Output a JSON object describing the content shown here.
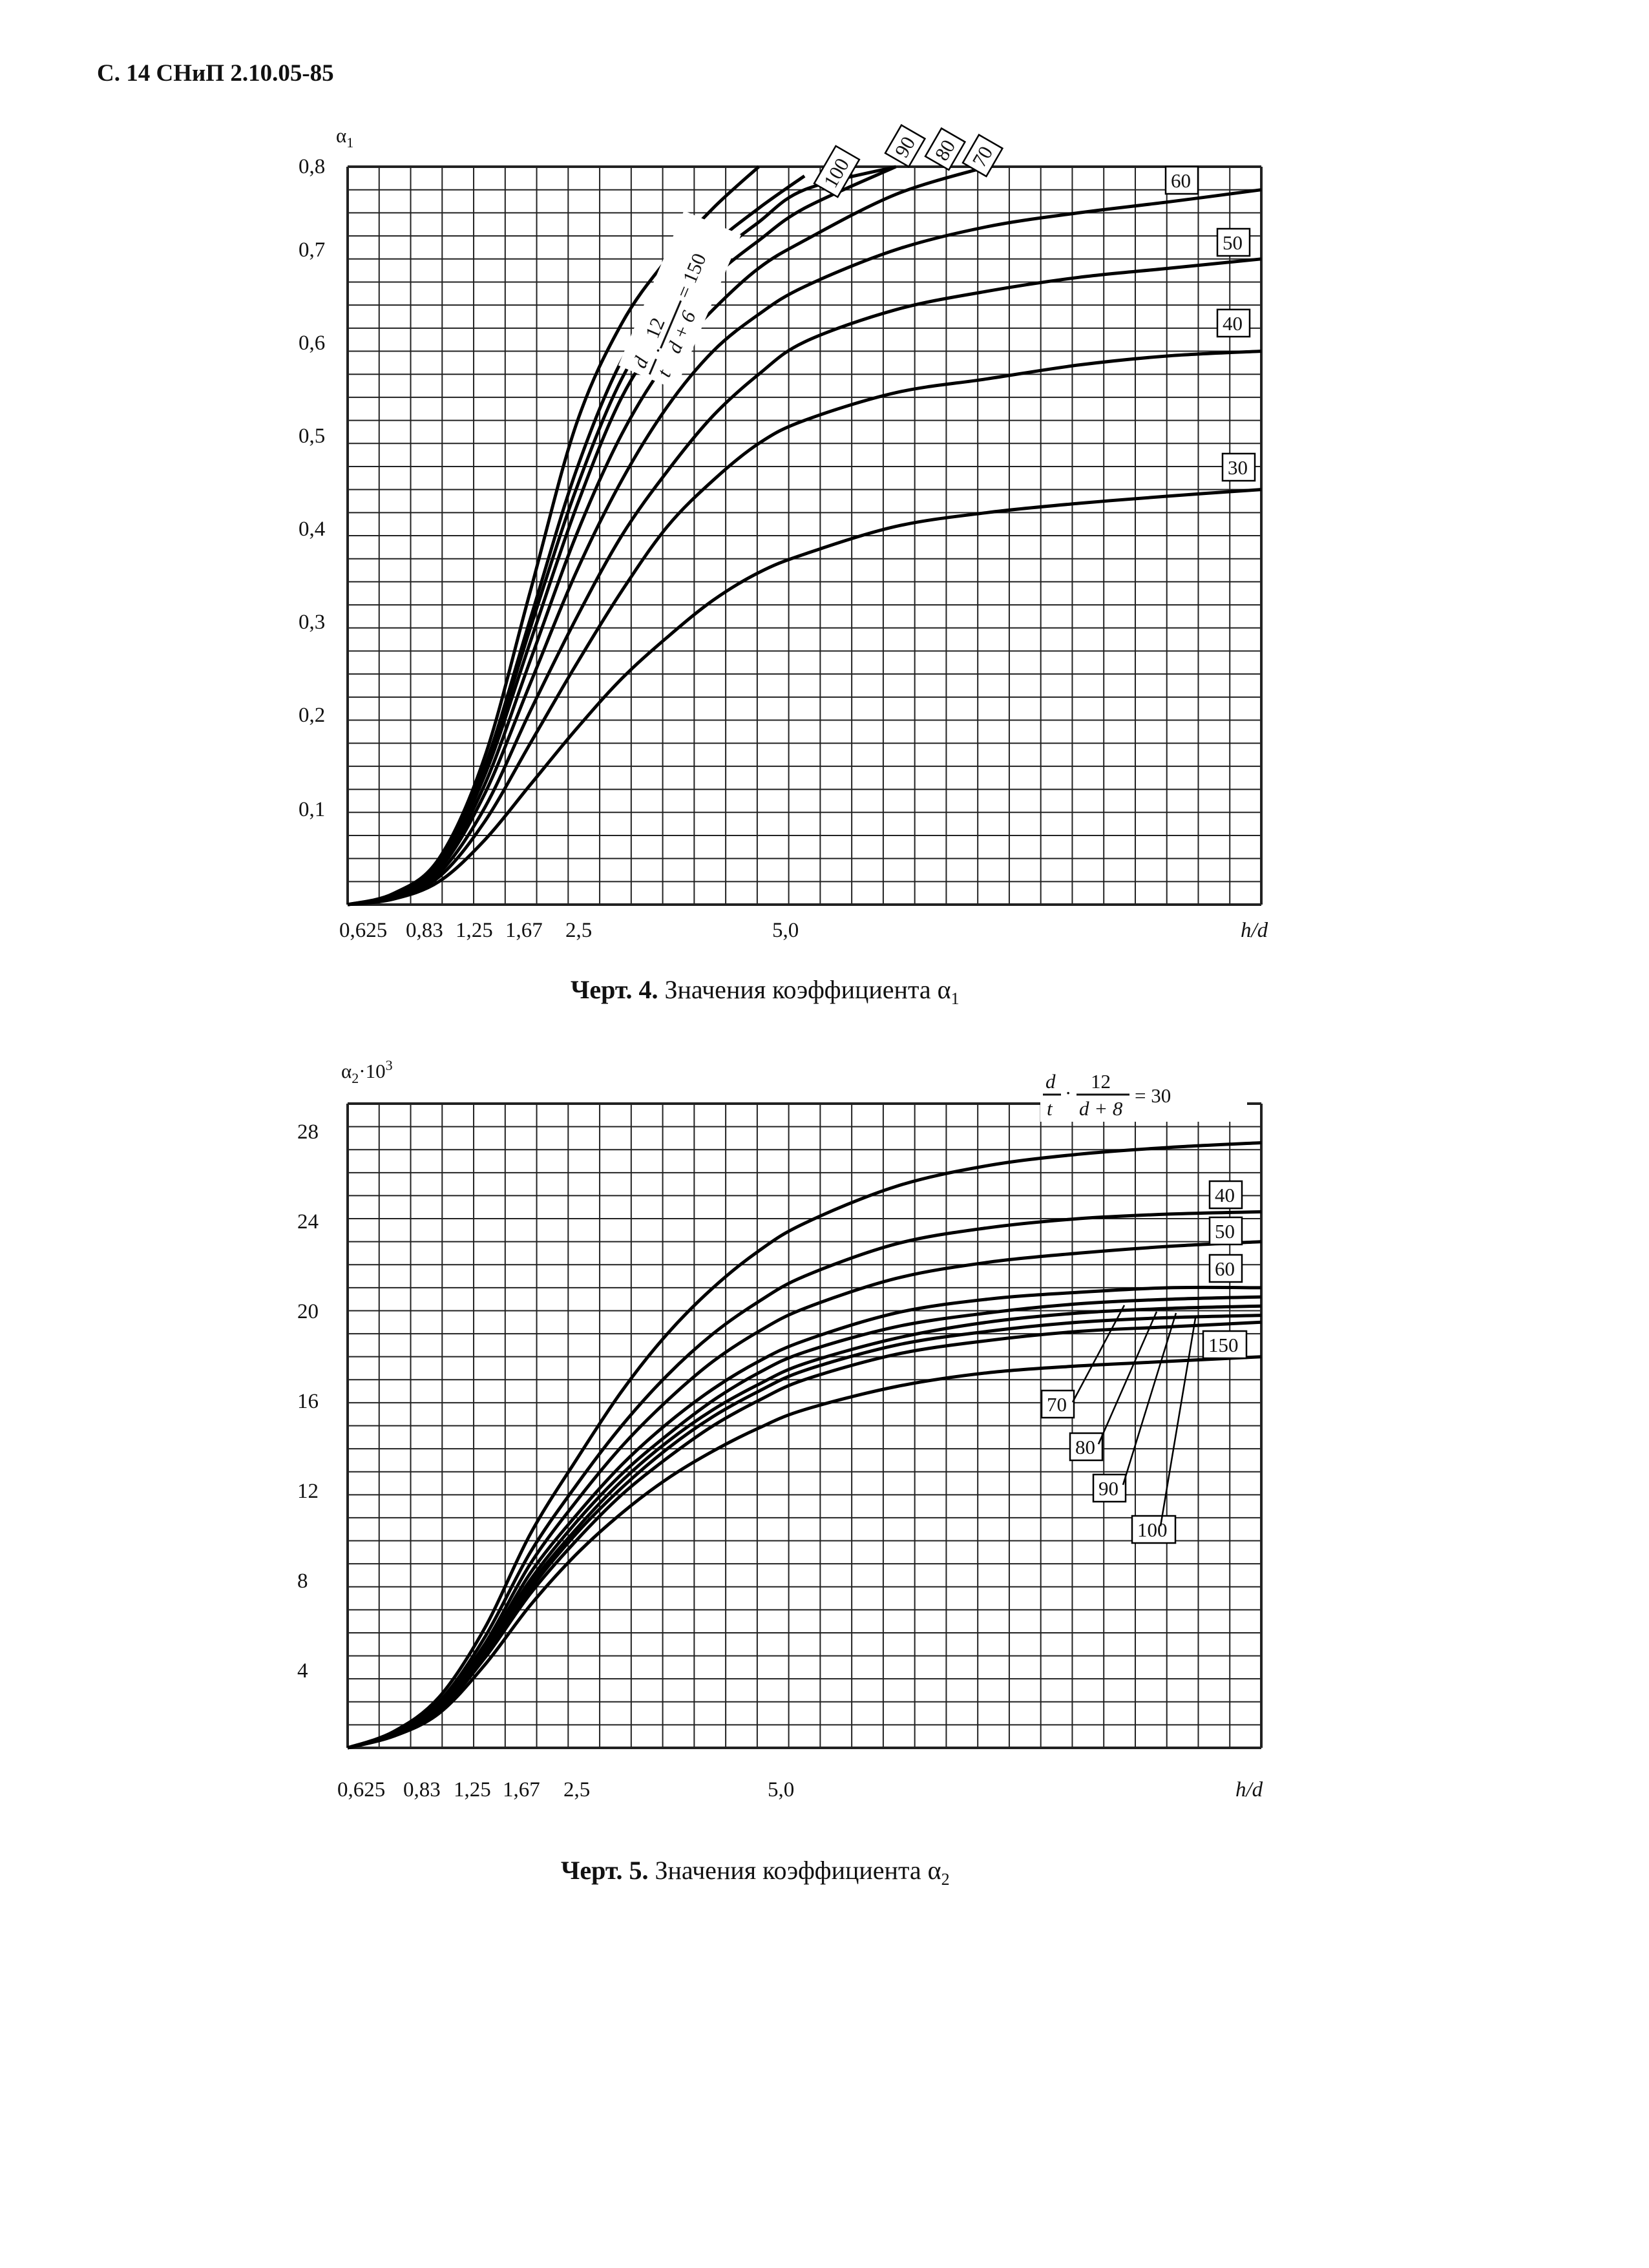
{
  "header": "С. 14 СНиП 2.10.05-85",
  "charts": [
    {
      "id": "chart4",
      "caption_bold": "Черт. 4.",
      "caption_text": " Значения коэффициента α",
      "caption_sub": "1",
      "y_label": "α",
      "y_label_sub": "1",
      "x_label": "h/d",
      "y_ticks": [
        "0,1",
        "0,2",
        "0,3",
        "0,4",
        "0,5",
        "0,6",
        "0,7",
        "0,8"
      ],
      "x_ticks": [
        "0,625",
        "0,83",
        "1,25",
        "1,67",
        "2,5",
        "5,0"
      ],
      "formula_num_d": "d",
      "formula_den_t": "t",
      "formula_num_12": "12",
      "formula_den": "d + 6",
      "formula_value": "= 150",
      "curve_labels": [
        "30",
        "40",
        "50",
        "60",
        "70",
        "80",
        "90",
        "100"
      ]
    },
    {
      "id": "chart5",
      "caption_bold": "Черт. 5.",
      "caption_text": " Значения коэффициента α",
      "caption_sub": "2",
      "y_label": "α",
      "y_label_sub": "2",
      "y_label_suffix": "·10",
      "y_label_sup": "3",
      "x_label": "h/d",
      "y_ticks": [
        "4",
        "8",
        "12",
        "16",
        "20",
        "24",
        "28"
      ],
      "x_ticks": [
        "0,625",
        "0,83",
        "1,25",
        "1,67",
        "2,5",
        "5,0"
      ],
      "formula_num_d": "d",
      "formula_den_t": "t",
      "formula_num_12": "12",
      "formula_den": "d + 8",
      "formula_value": "= 30",
      "curve_labels": [
        "40",
        "50",
        "60",
        "70",
        "80",
        "90",
        "100",
        "150"
      ]
    }
  ],
  "chart_data": [
    {
      "type": "line",
      "title": "Черт. 4. Значения коэффициента α1",
      "xlabel": "h/d",
      "ylabel": "α1",
      "ylim": [
        0,
        0.8
      ],
      "xlim": [
        0,
        10
      ],
      "grid": true,
      "x": [
        0,
        0.5,
        1.0,
        1.5,
        2.0,
        2.5,
        3.0,
        3.5,
        4.0,
        4.5,
        5.0,
        6.0,
        7.0,
        8.0,
        9.0,
        10.0
      ],
      "series": [
        {
          "name": "150",
          "values": [
            0,
            0.012,
            0.05,
            0.16,
            0.34,
            0.52,
            0.63,
            0.7,
            0.755,
            0.8,
            null,
            null,
            null,
            null,
            null,
            null
          ]
        },
        {
          "name": "100",
          "values": [
            0,
            0.011,
            0.046,
            0.15,
            0.31,
            0.47,
            0.59,
            0.66,
            0.715,
            0.755,
            0.79,
            null,
            null,
            null,
            null,
            null
          ]
        },
        {
          "name": "90",
          "values": [
            0,
            0.011,
            0.045,
            0.145,
            0.3,
            0.45,
            0.57,
            0.645,
            0.7,
            0.74,
            0.775,
            0.81,
            null,
            null,
            null,
            null
          ]
        },
        {
          "name": "80",
          "values": [
            0,
            0.01,
            0.043,
            0.14,
            0.285,
            0.43,
            0.55,
            0.625,
            0.68,
            0.72,
            0.755,
            0.8,
            null,
            null,
            null,
            null
          ]
        },
        {
          "name": "70",
          "values": [
            0,
            0.01,
            0.041,
            0.13,
            0.265,
            0.4,
            0.51,
            0.59,
            0.645,
            0.69,
            0.72,
            0.77,
            0.8,
            null,
            null,
            null
          ]
        },
        {
          "name": "60",
          "values": [
            0,
            0.009,
            0.038,
            0.12,
            0.24,
            0.36,
            0.46,
            0.54,
            0.6,
            0.64,
            0.67,
            0.71,
            0.735,
            0.75,
            0.762,
            0.775
          ]
        },
        {
          "name": "50",
          "values": [
            0,
            0.008,
            0.034,
            0.105,
            0.21,
            0.31,
            0.4,
            0.47,
            0.53,
            0.575,
            0.61,
            0.645,
            0.665,
            0.68,
            0.69,
            0.7
          ]
        },
        {
          "name": "40",
          "values": [
            0,
            0.007,
            0.03,
            0.09,
            0.175,
            0.26,
            0.34,
            0.41,
            0.46,
            0.5,
            0.525,
            0.555,
            0.57,
            0.585,
            0.595,
            0.6
          ]
        },
        {
          "name": "30",
          "values": [
            0,
            0.006,
            0.025,
            0.07,
            0.13,
            0.19,
            0.245,
            0.29,
            0.33,
            0.36,
            0.38,
            0.41,
            0.425,
            0.435,
            0.443,
            0.45
          ]
        }
      ]
    },
    {
      "type": "line",
      "title": "Черт. 5. Значения коэффициента α2",
      "xlabel": "h/d",
      "ylabel": "α2·10^3",
      "ylim": [
        0,
        28
      ],
      "xlim": [
        0,
        10
      ],
      "grid": true,
      "x": [
        0,
        0.5,
        1.0,
        1.5,
        2.0,
        2.5,
        3.0,
        3.5,
        4.0,
        4.5,
        5.0,
        6.0,
        7.0,
        8.0,
        9.0,
        10.0
      ],
      "series": [
        {
          "name": "30",
          "values": [
            0,
            0.7,
            2.2,
            5.2,
            9.3,
            12.5,
            15.5,
            18.0,
            20.0,
            21.6,
            22.8,
            24.4,
            25.3,
            25.8,
            26.1,
            26.3
          ]
        },
        {
          "name": "40",
          "values": [
            0,
            0.65,
            2.0,
            4.8,
            8.5,
            11.4,
            14.0,
            16.2,
            18.0,
            19.4,
            20.5,
            21.9,
            22.6,
            23.0,
            23.2,
            23.3
          ]
        },
        {
          "name": "50",
          "values": [
            0,
            0.6,
            1.9,
            4.5,
            8.0,
            10.7,
            13.1,
            15.1,
            16.8,
            18.1,
            19.1,
            20.4,
            21.1,
            21.5,
            21.8,
            22.0
          ]
        },
        {
          "name": "60",
          "values": [
            0,
            0.58,
            1.8,
            4.3,
            7.6,
            10.1,
            12.3,
            14.1,
            15.6,
            16.8,
            17.7,
            18.9,
            19.5,
            19.8,
            20.0,
            20.0
          ]
        },
        {
          "name": "70",
          "values": [
            0,
            0.56,
            1.75,
            4.2,
            7.3,
            9.8,
            11.9,
            13.6,
            15.1,
            16.3,
            17.2,
            18.3,
            18.9,
            19.3,
            19.5,
            19.6
          ]
        },
        {
          "name": "80",
          "values": [
            0,
            0.55,
            1.7,
            4.1,
            7.1,
            9.5,
            11.6,
            13.3,
            14.7,
            15.8,
            16.7,
            17.8,
            18.5,
            18.9,
            19.1,
            19.2
          ]
        },
        {
          "name": "90",
          "values": [
            0,
            0.54,
            1.65,
            4.0,
            6.9,
            9.3,
            11.3,
            13.0,
            14.4,
            15.5,
            16.4,
            17.5,
            18.1,
            18.5,
            18.7,
            18.8
          ]
        },
        {
          "name": "100",
          "values": [
            0,
            0.53,
            1.6,
            3.9,
            6.7,
            9.0,
            11.0,
            12.6,
            14.0,
            15.1,
            16.0,
            17.1,
            17.7,
            18.1,
            18.3,
            18.5
          ]
        },
        {
          "name": "150",
          "values": [
            0,
            0.5,
            1.5,
            3.6,
            6.2,
            8.4,
            10.2,
            11.7,
            12.9,
            13.9,
            14.7,
            15.7,
            16.3,
            16.6,
            16.8,
            17.0
          ]
        }
      ]
    }
  ]
}
